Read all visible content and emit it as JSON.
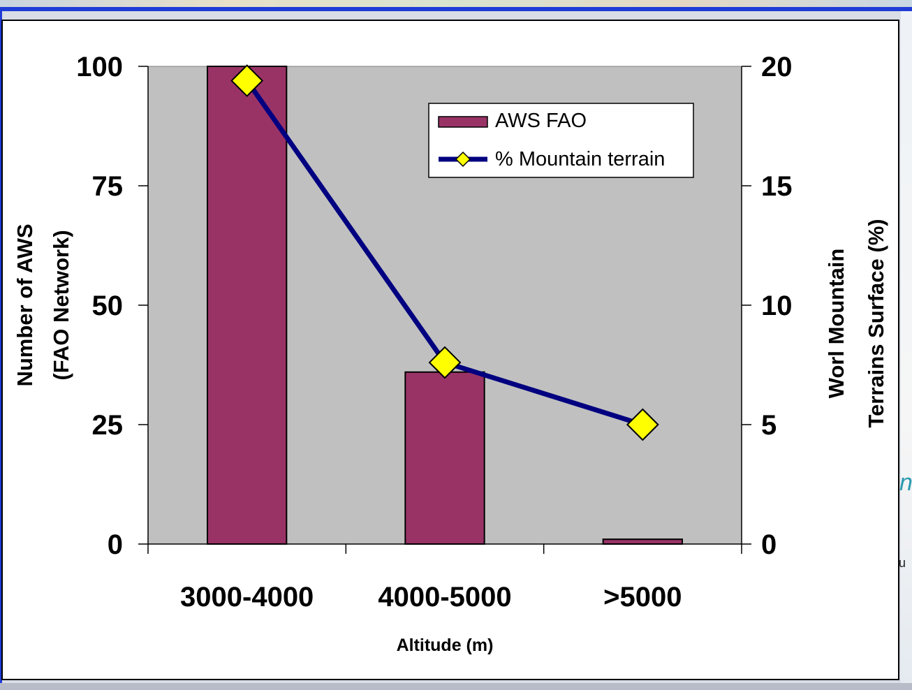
{
  "chart_data": {
    "type": "bar",
    "categories": [
      "3000-4000",
      "4000-5000",
      ">5000"
    ],
    "series": [
      {
        "name": "AWS FAO",
        "type": "bar",
        "axis": "left",
        "values": [
          100,
          36,
          1
        ]
      },
      {
        "name": "% Mountain terrain",
        "type": "line",
        "axis": "right",
        "marker": "diamond",
        "values": [
          19.4,
          7.6,
          5.0
        ]
      }
    ],
    "xlabel": "Altitude (m)",
    "ylabel": [
      "Number of AWS",
      "(FAO Network)"
    ],
    "y2label": [
      "Worl Mountain",
      "Terrains Surface (%)"
    ],
    "ylim": [
      0,
      100
    ],
    "y2lim": [
      0,
      20
    ],
    "yticks": [
      "0",
      "25",
      "50",
      "75",
      "100"
    ],
    "y2ticks": [
      "0",
      "5",
      "10",
      "15",
      "20"
    ],
    "legend": "top-right",
    "grid": false,
    "colors": {
      "bar": "#993366",
      "line": "#000080",
      "marker": "#ffff00",
      "plot_bg": "#c0c0c0"
    }
  }
}
